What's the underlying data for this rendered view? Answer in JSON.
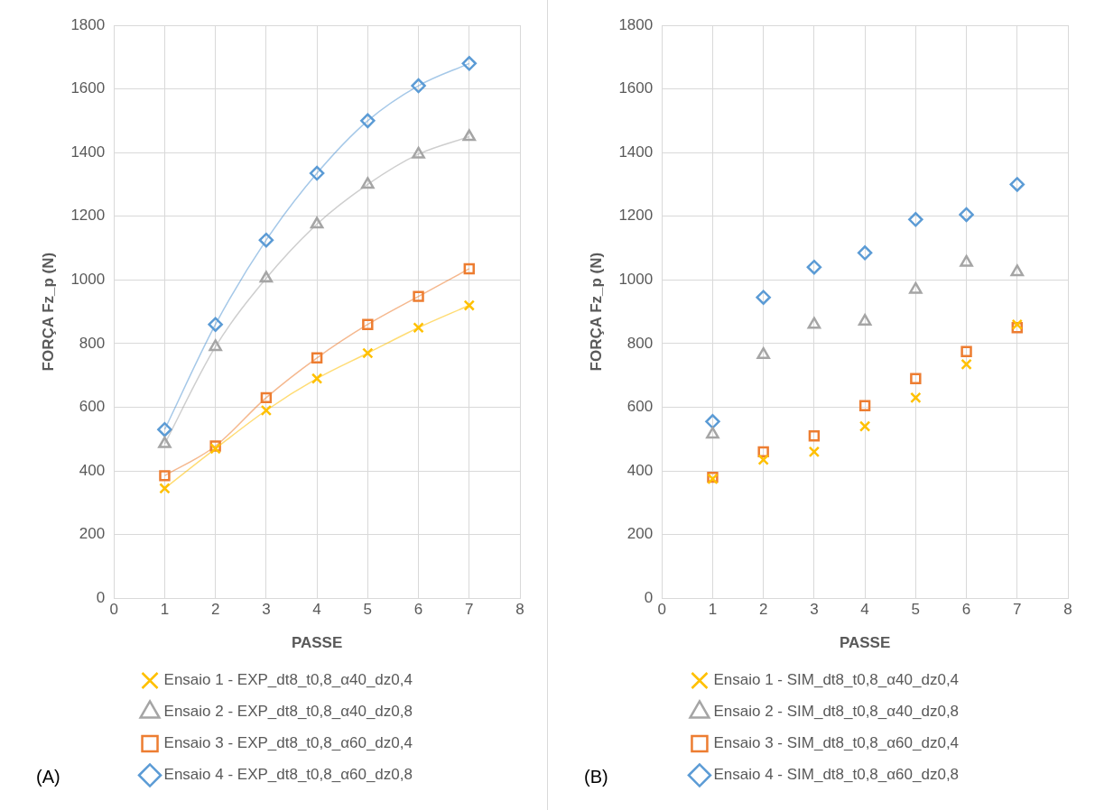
{
  "chart_data": [
    {
      "type": "line",
      "xlabel": "PASSE",
      "ylabel": "FORÇA Fz_p (N)",
      "x": [
        1,
        2,
        3,
        4,
        5,
        6,
        7
      ],
      "xlim": [
        0,
        8
      ],
      "xticks": [
        0,
        1,
        2,
        3,
        4,
        5,
        6,
        7,
        8
      ],
      "ylim": [
        0,
        1800
      ],
      "yticks": [
        0,
        200,
        400,
        600,
        800,
        1000,
        1200,
        1400,
        1600,
        1800
      ],
      "grid": true,
      "legend": "bottom",
      "annotations": [
        "(A)"
      ],
      "series": [
        {
          "name": "Ensaio 1 - EXP_dt8_t0,8_α40_dz0,4",
          "color": "#ffc000",
          "marker": "cross",
          "values": [
            345,
            470,
            590,
            690,
            770,
            850,
            920
          ]
        },
        {
          "name": "Ensaio 2 - EXP_dt8_t0,8_α40_dz0,8",
          "color": "#a5a5a5",
          "marker": "triangle",
          "values": [
            485,
            790,
            1005,
            1175,
            1300,
            1395,
            1450
          ]
        },
        {
          "name": "Ensaio 3 - EXP_dt8_t0,8_α60_dz0,4",
          "color": "#ed7d31",
          "marker": "square",
          "values": [
            385,
            478,
            630,
            755,
            860,
            948,
            1035
          ]
        },
        {
          "name": "Ensaio 4 - EXP_dt8_t0,8_α60_dz0,8",
          "color": "#5b9bd5",
          "marker": "diamond",
          "values": [
            530,
            860,
            1125,
            1335,
            1500,
            1610,
            1680
          ]
        }
      ]
    },
    {
      "type": "scatter",
      "xlabel": "PASSE",
      "ylabel": "FORÇA Fz_p (N)",
      "x": [
        1,
        2,
        3,
        4,
        5,
        6,
        7
      ],
      "xlim": [
        0,
        8
      ],
      "xticks": [
        0,
        1,
        2,
        3,
        4,
        5,
        6,
        7,
        8
      ],
      "ylim": [
        0,
        1800
      ],
      "yticks": [
        0,
        200,
        400,
        600,
        800,
        1000,
        1200,
        1400,
        1600,
        1800
      ],
      "grid": true,
      "legend": "bottom",
      "annotations": [
        "(B)"
      ],
      "series": [
        {
          "name": "Ensaio 1 - SIM_dt8_t0,8_α40_dz0,4",
          "color": "#ffc000",
          "marker": "cross",
          "values": [
            375,
            435,
            460,
            540,
            630,
            735,
            860
          ]
        },
        {
          "name": "Ensaio 2 - SIM_dt8_t0,8_α40_dz0,8",
          "color": "#a5a5a5",
          "marker": "triangle",
          "values": [
            515,
            765,
            860,
            870,
            970,
            1055,
            1025
          ]
        },
        {
          "name": "Ensaio 3 - SIM_dt8_t0,8_α60_dz0,4",
          "color": "#ed7d31",
          "marker": "square",
          "values": [
            380,
            460,
            510,
            605,
            690,
            775,
            850
          ]
        },
        {
          "name": "Ensaio 4 - SIM_dt8_t0,8_α60_dz0,8",
          "color": "#5b9bd5",
          "marker": "diamond",
          "values": [
            555,
            945,
            1040,
            1085,
            1190,
            1205,
            1300
          ]
        }
      ]
    }
  ]
}
